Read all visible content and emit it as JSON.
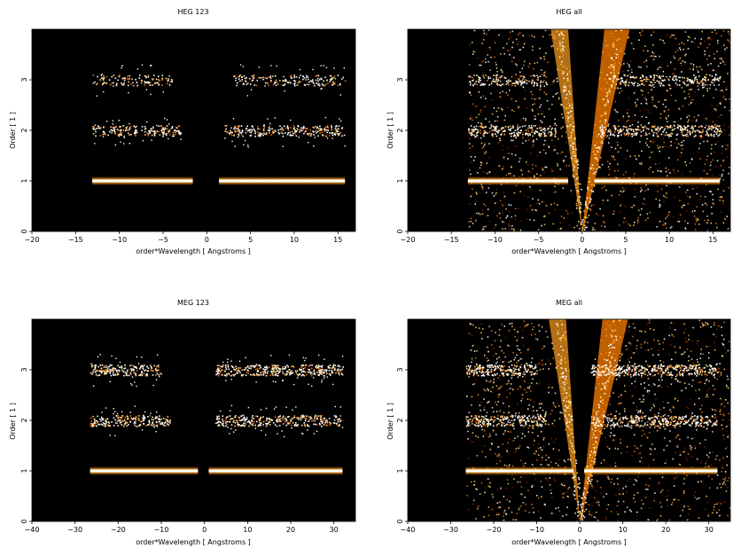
{
  "chart_data": [
    {
      "type": "heatmap",
      "title": "HEG 123",
      "xlabel": "order*Wavelength [ Angstroms ]",
      "ylabel": "Order [ 1 ]",
      "xlim": [
        -20,
        17
      ],
      "ylim": [
        0,
        4
      ],
      "xticks": [
        -20,
        -15,
        -10,
        -5,
        0,
        5,
        10,
        15
      ],
      "yticks": [
        0,
        1,
        2,
        3
      ],
      "background": "#000000",
      "bands": [
        {
          "order": 1,
          "x": [
            -13.1,
            -1.6
          ],
          "x2": [
            1.4,
            15.8
          ],
          "intensity": 1.0
        },
        {
          "order": 2,
          "x": [
            -13.1,
            -3.0
          ],
          "x2": [
            2.0,
            15.8
          ],
          "intensity": 0.55
        },
        {
          "order": 3,
          "x": [
            -13.1,
            -4.0
          ],
          "x2": [
            3.0,
            15.8
          ],
          "intensity": 0.4
        }
      ],
      "wedges": false
    },
    {
      "type": "heatmap",
      "title": "HEG all",
      "xlabel": "order*Wavelength [ Angstroms ]",
      "ylabel": "Order [ 1 ]",
      "xlim": [
        -20,
        17
      ],
      "ylim": [
        0,
        4
      ],
      "xticks": [
        -20,
        -15,
        -10,
        -5,
        0,
        5,
        10,
        15
      ],
      "yticks": [
        0,
        1,
        2,
        3
      ],
      "background": "#000000",
      "bands": [
        {
          "order": 1,
          "x": [
            -13.1,
            -1.6
          ],
          "x2": [
            1.4,
            15.8
          ],
          "intensity": 1.0
        },
        {
          "order": 2,
          "x": [
            -13.1,
            -3.0
          ],
          "x2": [
            2.0,
            15.8
          ],
          "intensity": 0.6
        },
        {
          "order": 3,
          "x": [
            -13.1,
            -4.0
          ],
          "x2": [
            3.0,
            15.8
          ],
          "intensity": 0.45
        }
      ],
      "wedges": true
    },
    {
      "type": "heatmap",
      "title": "MEG 123",
      "xlabel": "order*Wavelength [ Angstroms ]",
      "ylabel": "Order [ 1 ]",
      "xlim": [
        -40,
        35
      ],
      "ylim": [
        0,
        4
      ],
      "xticks": [
        -40,
        -30,
        -20,
        -10,
        0,
        10,
        20,
        30
      ],
      "yticks": [
        0,
        1,
        2,
        3
      ],
      "background": "#000000",
      "bands": [
        {
          "order": 1,
          "x": [
            -26.5,
            -1.5
          ],
          "x2": [
            1.0,
            32.0
          ],
          "intensity": 1.0
        },
        {
          "order": 2,
          "x": [
            -26.5,
            -8.0
          ],
          "x2": [
            2.5,
            32.0
          ],
          "intensity": 0.65
        },
        {
          "order": 3,
          "x": [
            -26.5,
            -10.0
          ],
          "x2": [
            2.5,
            32.0
          ],
          "intensity": 0.75
        }
      ],
      "wedges": false
    },
    {
      "type": "heatmap",
      "title": "MEG all",
      "xlabel": "order*Wavelength [ Angstroms ]",
      "ylabel": "Order [ 1 ]",
      "xlim": [
        -40,
        35
      ],
      "ylim": [
        0,
        4
      ],
      "xticks": [
        -40,
        -30,
        -20,
        -10,
        0,
        10,
        20,
        30
      ],
      "yticks": [
        0,
        1,
        2,
        3
      ],
      "background": "#000000",
      "bands": [
        {
          "order": 1,
          "x": [
            -26.5,
            -1.5
          ],
          "x2": [
            1.0,
            32.0
          ],
          "intensity": 1.0
        },
        {
          "order": 2,
          "x": [
            -26.5,
            -8.0
          ],
          "x2": [
            2.5,
            32.0
          ],
          "intensity": 0.7
        },
        {
          "order": 3,
          "x": [
            -26.5,
            -10.0
          ],
          "x2": [
            2.5,
            32.0
          ],
          "intensity": 0.8
        }
      ],
      "wedges": true
    }
  ]
}
